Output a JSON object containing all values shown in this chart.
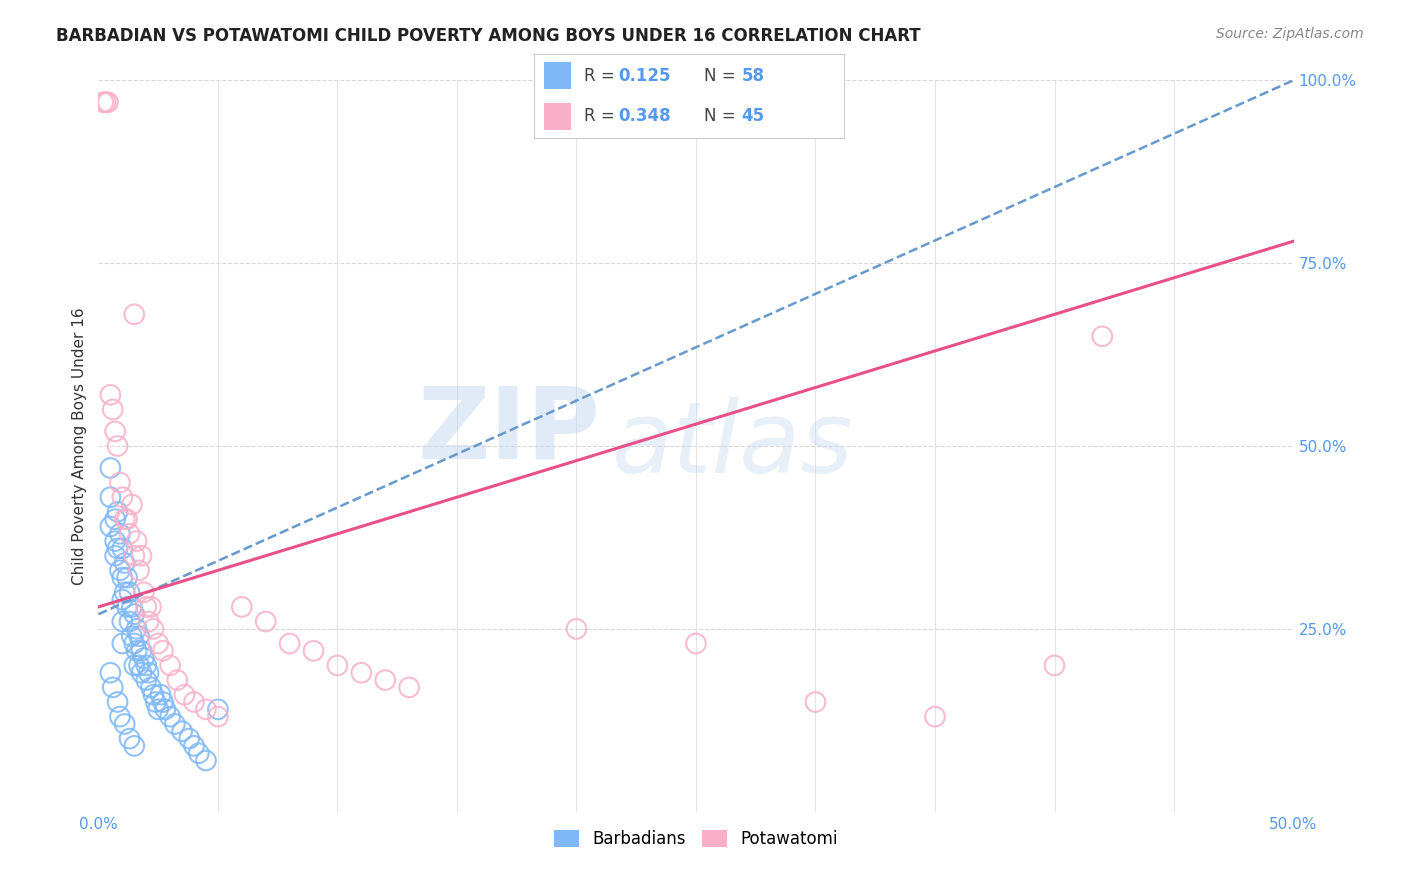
{
  "title": "BARBADIAN VS POTAWATOMI CHILD POVERTY AMONG BOYS UNDER 16 CORRELATION CHART",
  "source": "Source: ZipAtlas.com",
  "ylabel": "Child Poverty Among Boys Under 16",
  "xlim": [
    0.0,
    0.5
  ],
  "ylim": [
    0.0,
    1.0
  ],
  "xticks": [
    0.0,
    0.05,
    0.1,
    0.15,
    0.2,
    0.25,
    0.3,
    0.35,
    0.4,
    0.45,
    0.5
  ],
  "xticklabels_show": [
    "0.0%",
    "",
    "",
    "",
    "",
    "",
    "",
    "",
    "",
    "",
    "50.0%"
  ],
  "yticks": [
    0.0,
    0.25,
    0.5,
    0.75,
    1.0
  ],
  "yticklabels": [
    "",
    "25.0%",
    "50.0%",
    "75.0%",
    "100.0%"
  ],
  "legend_labels": [
    "Barbadians",
    "Potawatomi"
  ],
  "blue_R": 0.125,
  "blue_N": 58,
  "pink_R": 0.348,
  "pink_N": 45,
  "blue_color": "#7eb8f7",
  "pink_color": "#f9afc8",
  "blue_line_color": "#6699cc",
  "pink_line_color": "#e8508a",
  "watermark_zip": "ZIP",
  "watermark_atlas": "atlas",
  "background_color": "#ffffff",
  "grid_color": "#d8d8d8",
  "title_color": "#222222",
  "axis_label_color": "#333333",
  "tick_color": "#5599ee",
  "blue_scatter_x": [
    0.005,
    0.005,
    0.005,
    0.007,
    0.007,
    0.007,
    0.008,
    0.008,
    0.009,
    0.009,
    0.01,
    0.01,
    0.01,
    0.01,
    0.01,
    0.011,
    0.011,
    0.012,
    0.012,
    0.013,
    0.013,
    0.014,
    0.014,
    0.015,
    0.015,
    0.015,
    0.016,
    0.016,
    0.017,
    0.017,
    0.018,
    0.018,
    0.019,
    0.02,
    0.02,
    0.021,
    0.022,
    0.023,
    0.024,
    0.025,
    0.026,
    0.027,
    0.028,
    0.03,
    0.032,
    0.035,
    0.038,
    0.04,
    0.042,
    0.045,
    0.005,
    0.006,
    0.008,
    0.009,
    0.011,
    0.013,
    0.015,
    0.05
  ],
  "blue_scatter_y": [
    0.47,
    0.43,
    0.39,
    0.4,
    0.37,
    0.35,
    0.41,
    0.36,
    0.38,
    0.33,
    0.36,
    0.32,
    0.29,
    0.26,
    0.23,
    0.34,
    0.3,
    0.32,
    0.28,
    0.3,
    0.26,
    0.28,
    0.24,
    0.27,
    0.23,
    0.2,
    0.25,
    0.22,
    0.24,
    0.2,
    0.22,
    0.19,
    0.21,
    0.2,
    0.18,
    0.19,
    0.17,
    0.16,
    0.15,
    0.14,
    0.16,
    0.15,
    0.14,
    0.13,
    0.12,
    0.11,
    0.1,
    0.09,
    0.08,
    0.07,
    0.19,
    0.17,
    0.15,
    0.13,
    0.12,
    0.1,
    0.09,
    0.14
  ],
  "pink_scatter_x": [
    0.002,
    0.003,
    0.004,
    0.005,
    0.006,
    0.007,
    0.008,
    0.009,
    0.01,
    0.011,
    0.012,
    0.013,
    0.014,
    0.015,
    0.016,
    0.017,
    0.018,
    0.019,
    0.02,
    0.021,
    0.022,
    0.023,
    0.025,
    0.027,
    0.03,
    0.033,
    0.036,
    0.04,
    0.045,
    0.05,
    0.06,
    0.07,
    0.08,
    0.09,
    0.1,
    0.11,
    0.12,
    0.13,
    0.2,
    0.25,
    0.3,
    0.35,
    0.4,
    0.42,
    0.015
  ],
  "pink_scatter_y": [
    0.97,
    0.97,
    0.97,
    0.57,
    0.55,
    0.52,
    0.5,
    0.45,
    0.43,
    0.4,
    0.4,
    0.38,
    0.42,
    0.35,
    0.37,
    0.33,
    0.35,
    0.3,
    0.28,
    0.26,
    0.28,
    0.25,
    0.23,
    0.22,
    0.2,
    0.18,
    0.16,
    0.15,
    0.14,
    0.13,
    0.28,
    0.26,
    0.23,
    0.22,
    0.2,
    0.19,
    0.18,
    0.17,
    0.25,
    0.23,
    0.15,
    0.13,
    0.2,
    0.65,
    0.68
  ]
}
